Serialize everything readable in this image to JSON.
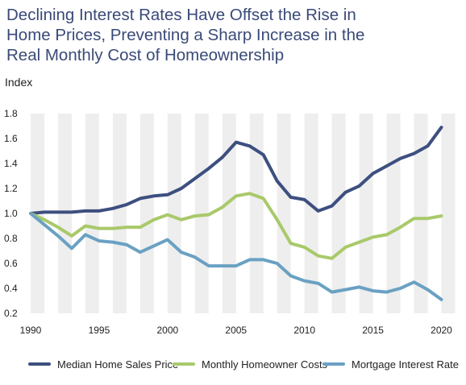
{
  "chart_data": {
    "type": "line",
    "title_lines": [
      "Declining Interest Rates Have Offset the Rise in",
      "Home Prices, Preventing a Sharp Increase in the",
      "Real Monthly Cost of Homeownership"
    ],
    "ylabel": "Index",
    "xlabel": "",
    "xlim": [
      1990,
      2020
    ],
    "ylim": [
      0.2,
      1.8
    ],
    "x_ticks": [
      1990,
      1995,
      2000,
      2005,
      2010,
      2015,
      2020
    ],
    "y_ticks": [
      "0.2",
      "0.4",
      "0.6",
      "0.8",
      "1.0",
      "1.2",
      "1.4",
      "1.6",
      "1.8"
    ],
    "x": [
      1990,
      1991,
      1992,
      1993,
      1994,
      1995,
      1996,
      1997,
      1998,
      1999,
      2000,
      2001,
      2002,
      2003,
      2004,
      2005,
      2006,
      2007,
      2008,
      2009,
      2010,
      2011,
      2012,
      2013,
      2014,
      2015,
      2016,
      2017,
      2018,
      2019,
      2020
    ],
    "series": [
      {
        "name": "Median Home Sales Price",
        "color": "#3d4f7f",
        "values": [
          1.0,
          1.01,
          1.01,
          1.01,
          1.02,
          1.02,
          1.04,
          1.07,
          1.12,
          1.14,
          1.15,
          1.2,
          1.28,
          1.36,
          1.45,
          1.57,
          1.54,
          1.47,
          1.26,
          1.13,
          1.11,
          1.02,
          1.06,
          1.17,
          1.22,
          1.32,
          1.38,
          1.44,
          1.48,
          1.54,
          1.69
        ]
      },
      {
        "name": "Monthly Homeowner Costs",
        "color": "#a9c96a",
        "values": [
          1.0,
          0.95,
          0.89,
          0.82,
          0.9,
          0.88,
          0.88,
          0.89,
          0.89,
          0.95,
          0.99,
          0.95,
          0.98,
          0.99,
          1.05,
          1.14,
          1.16,
          1.12,
          0.95,
          0.76,
          0.73,
          0.66,
          0.64,
          0.73,
          0.77,
          0.81,
          0.83,
          0.89,
          0.96,
          0.96,
          0.98
        ]
      },
      {
        "name": "Mortgage Interest Rate",
        "color": "#6aa1c3",
        "values": [
          1.0,
          0.91,
          0.82,
          0.72,
          0.83,
          0.78,
          0.77,
          0.75,
          0.69,
          0.74,
          0.79,
          0.69,
          0.65,
          0.58,
          0.58,
          0.58,
          0.63,
          0.63,
          0.6,
          0.5,
          0.46,
          0.44,
          0.37,
          0.39,
          0.41,
          0.38,
          0.37,
          0.4,
          0.45,
          0.39,
          0.31
        ]
      }
    ],
    "grid": "alternating vertical bands per year",
    "band_color": "#eeeeee",
    "legend_position": "bottom"
  }
}
